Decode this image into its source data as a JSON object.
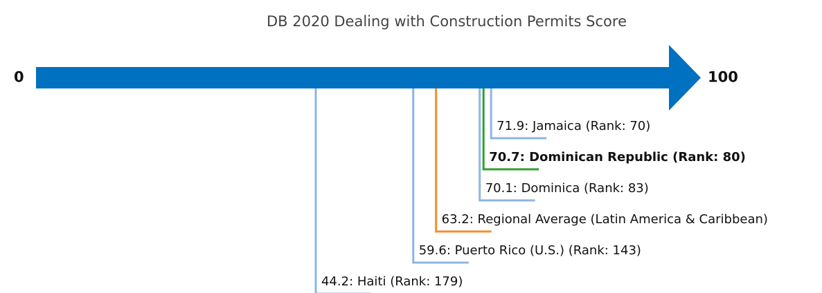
{
  "chart_data": {
    "type": "number-line",
    "title": "DB 2020 Dealing with Construction Permits Score",
    "xlim": [
      0,
      100
    ],
    "xticks": [
      0,
      100
    ],
    "axis_color": "#0070c0",
    "values": [
      71.9,
      70.7,
      70.1,
      63.2,
      59.6,
      44.2
    ],
    "value_labels": [
      "71.9: Jamaica (Rank: 70)",
      "70.7: Dominican Republic (Rank: 80)",
      "70.1: Dominica (Rank: 83)",
      "63.2: Regional Average (Latin America & Caribbean)",
      "59.6: Puerto Rico (U.S.) (Rank: 143)",
      "44.2: Haiti (Rank: 179)"
    ],
    "colors": [
      "#8db4e8",
      "#2ca02c",
      "#8db4e8",
      "#f28e2b",
      "#8db4e8",
      "#8db4e8"
    ],
    "bold": [
      false,
      true,
      false,
      false,
      false,
      false
    ]
  }
}
